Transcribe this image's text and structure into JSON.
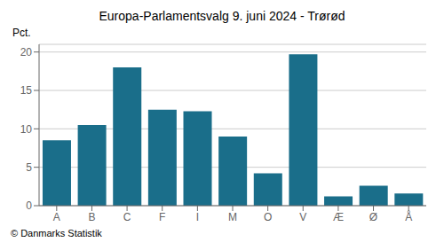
{
  "chart_data": {
    "type": "bar",
    "title": "Europa-Parlamentsvalg 9. juni 2024 - Trørød",
    "categories": [
      "A",
      "B",
      "C",
      "F",
      "I",
      "M",
      "O",
      "V",
      "Æ",
      "Ø",
      "Å"
    ],
    "values": [
      8.5,
      10.5,
      18.0,
      12.5,
      12.3,
      9.0,
      4.2,
      19.7,
      1.2,
      2.6,
      1.6
    ],
    "color": "#1a6e8a",
    "ylabel": "Pct.",
    "ylim": [
      0,
      21
    ],
    "yticks": [
      0,
      5,
      10,
      15,
      20
    ],
    "grid": true,
    "annotations": [
      "© Danmarks Statistik"
    ]
  }
}
